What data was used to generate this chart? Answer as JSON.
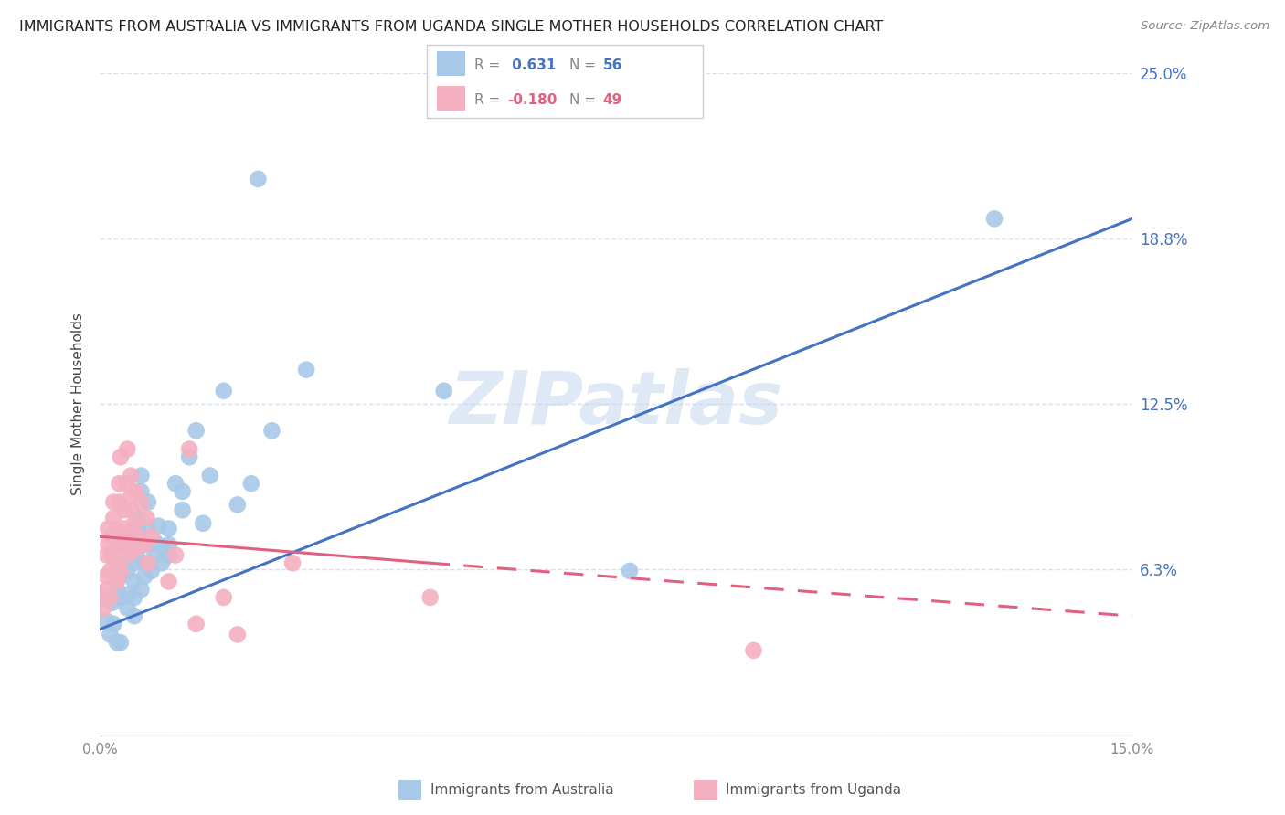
{
  "title": "IMMIGRANTS FROM AUSTRALIA VS IMMIGRANTS FROM UGANDA SINGLE MOTHER HOUSEHOLDS CORRELATION CHART",
  "source": "Source: ZipAtlas.com",
  "ylabel": "Single Mother Households",
  "xlim": [
    0.0,
    0.15
  ],
  "ylim": [
    0.0,
    0.25
  ],
  "xticks": [
    0.0,
    0.05,
    0.1,
    0.15
  ],
  "xticklabels": [
    "0.0%",
    "",
    "",
    "15.0%"
  ],
  "yticks": [
    0.0,
    0.0625,
    0.125,
    0.1875,
    0.25
  ],
  "yticklabels_right": [
    "",
    "6.3%",
    "12.5%",
    "18.8%",
    "25.0%"
  ],
  "watermark": "ZIPatlas",
  "australia_color": "#a8c8e8",
  "australia_line_color": "#4472c4",
  "uganda_color": "#f4b0c0",
  "uganda_line_color": "#e06080",
  "background_color": "#ffffff",
  "grid_color": "#d8e0ec",
  "title_color": "#222222",
  "right_tick_color": "#4472c4",
  "aus_R": "0.631",
  "aus_N": "56",
  "uga_R": "-0.180",
  "uga_N": "49",
  "australia_scatter": [
    [
      0.001,
      0.043
    ],
    [
      0.0015,
      0.038
    ],
    [
      0.0018,
      0.05
    ],
    [
      0.002,
      0.042
    ],
    [
      0.0025,
      0.055
    ],
    [
      0.0025,
      0.035
    ],
    [
      0.003,
      0.052
    ],
    [
      0.003,
      0.06
    ],
    [
      0.003,
      0.035
    ],
    [
      0.0035,
      0.064
    ],
    [
      0.004,
      0.048
    ],
    [
      0.004,
      0.053
    ],
    [
      0.004,
      0.062
    ],
    [
      0.0045,
      0.068
    ],
    [
      0.0045,
      0.072
    ],
    [
      0.0045,
      0.075
    ],
    [
      0.005,
      0.045
    ],
    [
      0.005,
      0.052
    ],
    [
      0.005,
      0.058
    ],
    [
      0.005,
      0.065
    ],
    [
      0.0055,
      0.07
    ],
    [
      0.0055,
      0.078
    ],
    [
      0.0055,
      0.082
    ],
    [
      0.006,
      0.092
    ],
    [
      0.006,
      0.098
    ],
    [
      0.006,
      0.055
    ],
    [
      0.0065,
      0.06
    ],
    [
      0.0065,
      0.065
    ],
    [
      0.007,
      0.072
    ],
    [
      0.007,
      0.078
    ],
    [
      0.007,
      0.088
    ],
    [
      0.0075,
      0.062
    ],
    [
      0.008,
      0.068
    ],
    [
      0.008,
      0.073
    ],
    [
      0.0085,
      0.079
    ],
    [
      0.009,
      0.065
    ],
    [
      0.009,
      0.071
    ],
    [
      0.01,
      0.068
    ],
    [
      0.01,
      0.072
    ],
    [
      0.01,
      0.078
    ],
    [
      0.011,
      0.095
    ],
    [
      0.012,
      0.085
    ],
    [
      0.012,
      0.092
    ],
    [
      0.013,
      0.105
    ],
    [
      0.014,
      0.115
    ],
    [
      0.015,
      0.08
    ],
    [
      0.016,
      0.098
    ],
    [
      0.018,
      0.13
    ],
    [
      0.02,
      0.087
    ],
    [
      0.022,
      0.095
    ],
    [
      0.023,
      0.21
    ],
    [
      0.025,
      0.115
    ],
    [
      0.03,
      0.138
    ],
    [
      0.05,
      0.13
    ],
    [
      0.077,
      0.062
    ],
    [
      0.13,
      0.195
    ]
  ],
  "uganda_scatter": [
    [
      0.0005,
      0.048
    ],
    [
      0.0008,
      0.052
    ],
    [
      0.001,
      0.055
    ],
    [
      0.001,
      0.06
    ],
    [
      0.001,
      0.068
    ],
    [
      0.0012,
      0.072
    ],
    [
      0.0012,
      0.078
    ],
    [
      0.0015,
      0.052
    ],
    [
      0.0015,
      0.062
    ],
    [
      0.0018,
      0.068
    ],
    [
      0.0018,
      0.075
    ],
    [
      0.002,
      0.082
    ],
    [
      0.002,
      0.088
    ],
    [
      0.0025,
      0.058
    ],
    [
      0.0025,
      0.065
    ],
    [
      0.0025,
      0.072
    ],
    [
      0.0025,
      0.078
    ],
    [
      0.0028,
      0.088
    ],
    [
      0.0028,
      0.095
    ],
    [
      0.003,
      0.105
    ],
    [
      0.003,
      0.062
    ],
    [
      0.0032,
      0.072
    ],
    [
      0.0035,
      0.078
    ],
    [
      0.0035,
      0.085
    ],
    [
      0.0038,
      0.095
    ],
    [
      0.004,
      0.108
    ],
    [
      0.004,
      0.068
    ],
    [
      0.0042,
      0.075
    ],
    [
      0.0045,
      0.085
    ],
    [
      0.0045,
      0.09
    ],
    [
      0.0045,
      0.098
    ],
    [
      0.005,
      0.07
    ],
    [
      0.005,
      0.08
    ],
    [
      0.0052,
      0.092
    ],
    [
      0.0055,
      0.075
    ],
    [
      0.006,
      0.088
    ],
    [
      0.0065,
      0.072
    ],
    [
      0.0068,
      0.082
    ],
    [
      0.007,
      0.065
    ],
    [
      0.0075,
      0.075
    ],
    [
      0.01,
      0.058
    ],
    [
      0.011,
      0.068
    ],
    [
      0.013,
      0.108
    ],
    [
      0.014,
      0.042
    ],
    [
      0.018,
      0.052
    ],
    [
      0.02,
      0.038
    ],
    [
      0.028,
      0.065
    ],
    [
      0.048,
      0.052
    ],
    [
      0.095,
      0.032
    ]
  ],
  "aus_trend_x0": 0.0,
  "aus_trend_x1": 0.15,
  "aus_trend_y0": 0.04,
  "aus_trend_y1": 0.195,
  "uga_trend_solid_x0": 0.0,
  "uga_trend_solid_x1": 0.048,
  "uga_trend_solid_y0": 0.075,
  "uga_trend_solid_y1": 0.065,
  "uga_trend_dash_x0": 0.048,
  "uga_trend_dash_x1": 0.15,
  "uga_trend_dash_y0": 0.065,
  "uga_trend_dash_y1": 0.045
}
